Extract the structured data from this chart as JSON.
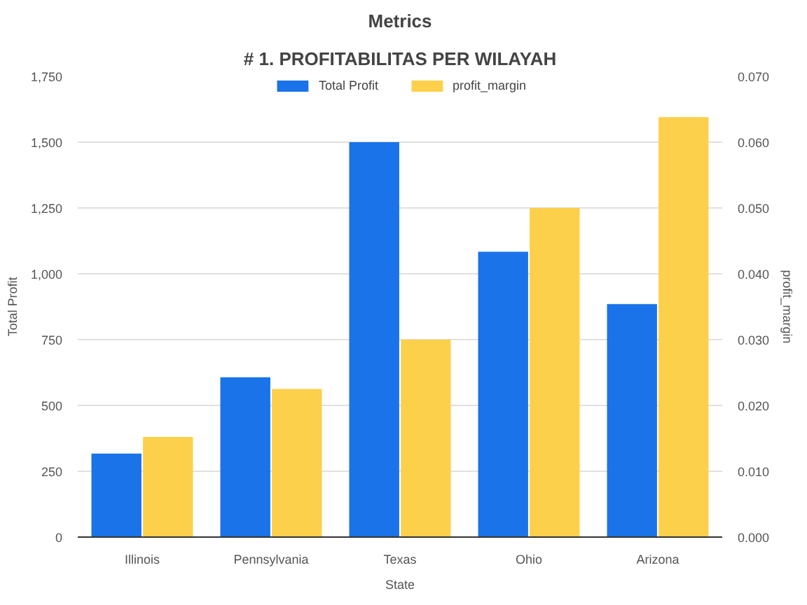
{
  "chart_data": {
    "type": "bar",
    "title": "Metrics",
    "subtitle": "# 1. PROFITABILITAS PER WILAYAH",
    "xlabel": "State",
    "ylabel": "Total Profit",
    "y2label": "profit_margin",
    "categories": [
      "Illinois",
      "Pennsylvania",
      "Texas",
      "Ohio",
      "Arizona"
    ],
    "series": [
      {
        "name": "Total Profit",
        "color": "#1a73e8",
        "values": [
          317,
          607,
          1500,
          1084,
          885
        ]
      },
      {
        "name": "profit_margin",
        "color": "#fdd04b",
        "axis": "y2",
        "values": [
          0.0152,
          0.0225,
          0.03,
          0.05,
          0.0638
        ]
      }
    ],
    "ylim": [
      0,
      1750
    ],
    "yticks": [
      0,
      250,
      {
        "value": 500,
        "label": "500"
      },
      750,
      {
        "value": 1000,
        "label": "1,000"
      },
      {
        "value": 1250,
        "label": "1,250"
      },
      {
        "value": 1500,
        "label": "1,500"
      },
      {
        "value": 1750,
        "label": "1,750"
      }
    ],
    "y2lim": [
      0,
      0.07
    ],
    "y2ticks": [
      {
        "value": 0,
        "label": "0.000"
      },
      {
        "value": 0.01,
        "label": "0.010"
      },
      {
        "value": 0.02,
        "label": "0.020"
      },
      {
        "value": 0.03,
        "label": "0.030"
      },
      {
        "value": 0.04,
        "label": "0.040"
      },
      {
        "value": 0.05,
        "label": "0.050"
      },
      {
        "value": 0.06,
        "label": "0.060"
      },
      {
        "value": 0.07,
        "label": "0.070"
      }
    ],
    "grid": "y",
    "legend": "top"
  }
}
